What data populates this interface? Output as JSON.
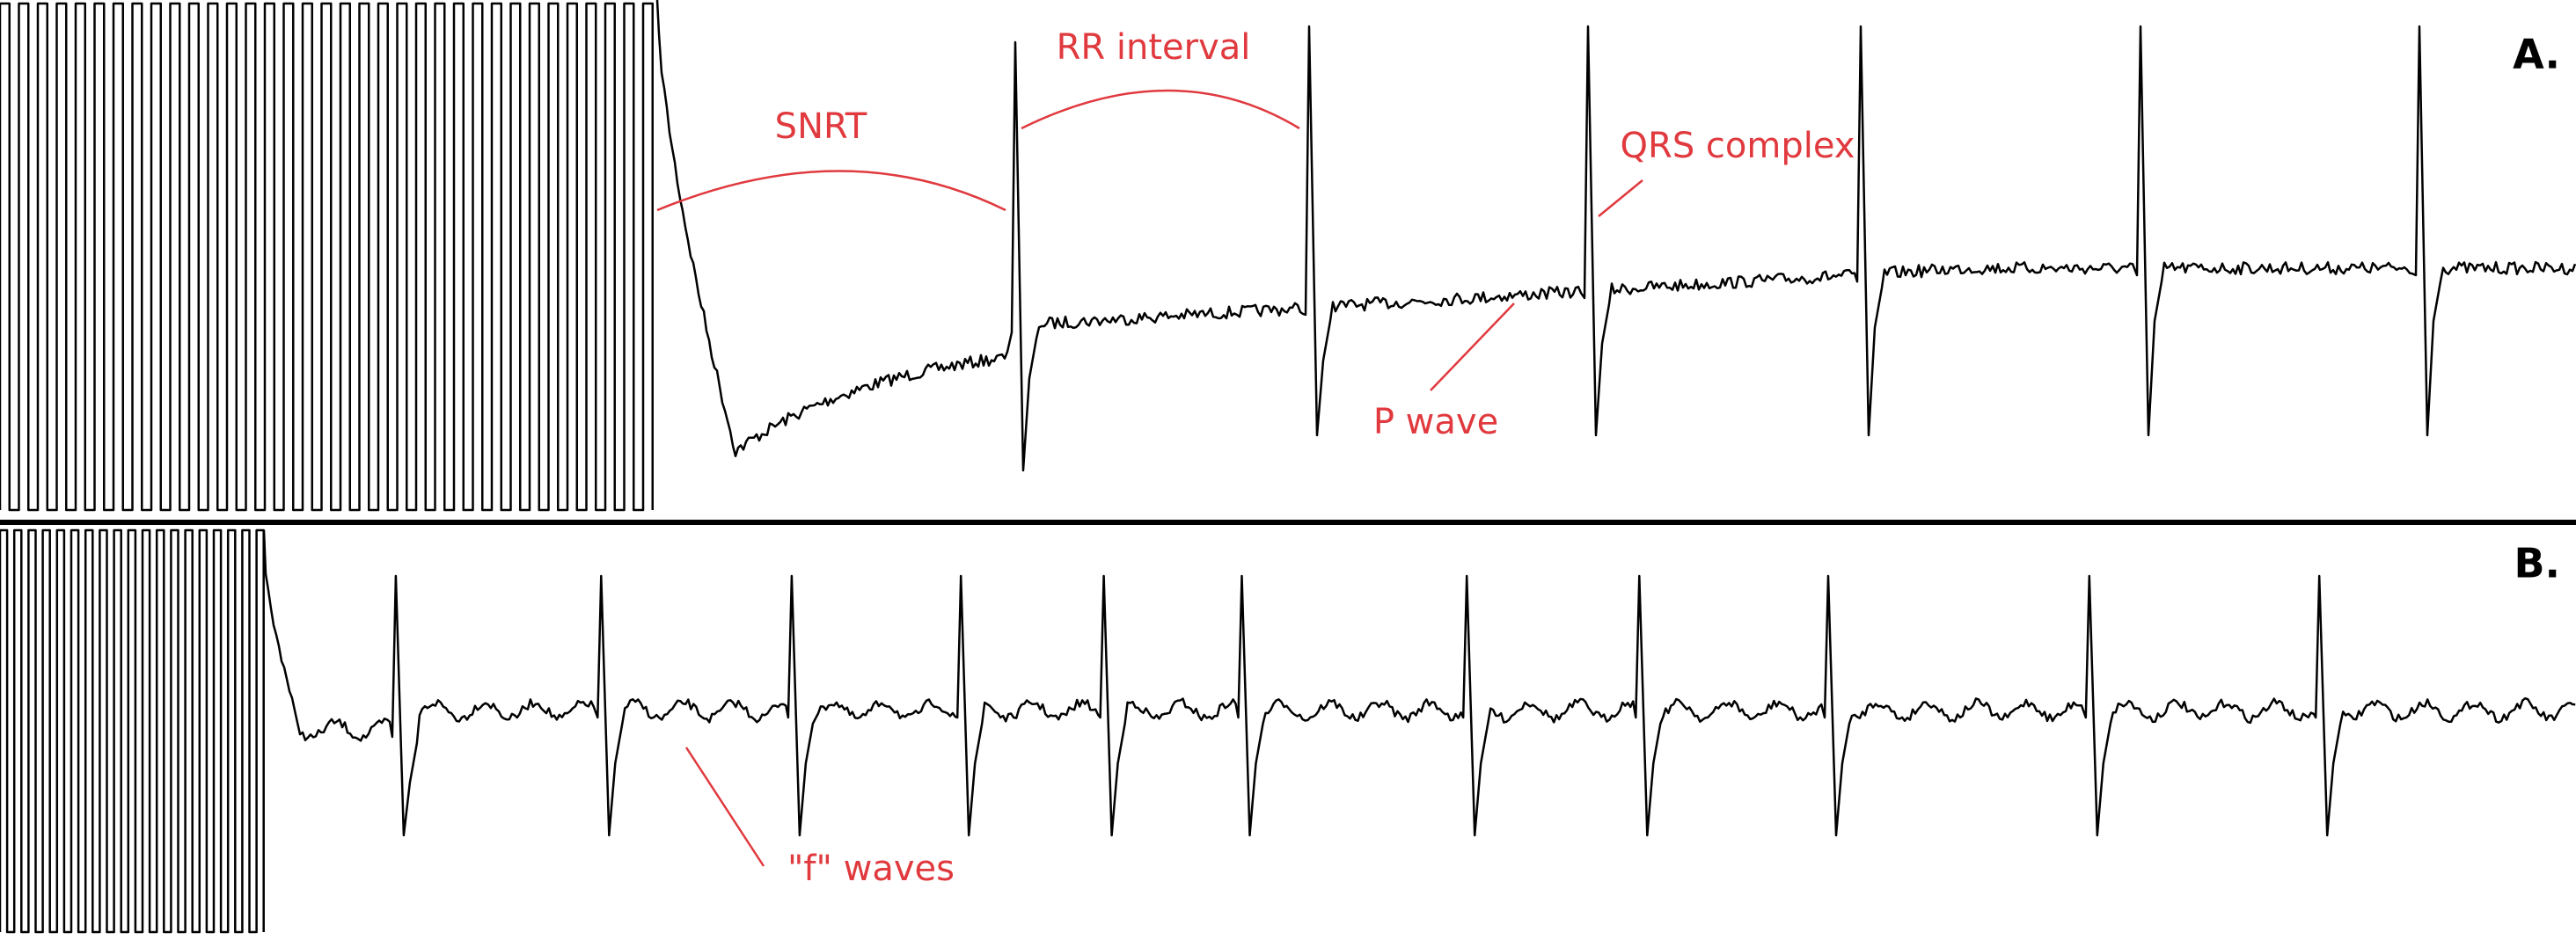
{
  "panels": [
    {
      "label": "A.",
      "annotations": {
        "snrt": "SNRT",
        "rr_interval": "RR interval",
        "qrs_complex": "QRS complex",
        "p_wave": "P wave"
      }
    },
    {
      "label": "B.",
      "annotations": {
        "f_waves": "\"f\" waves"
      }
    }
  ]
}
